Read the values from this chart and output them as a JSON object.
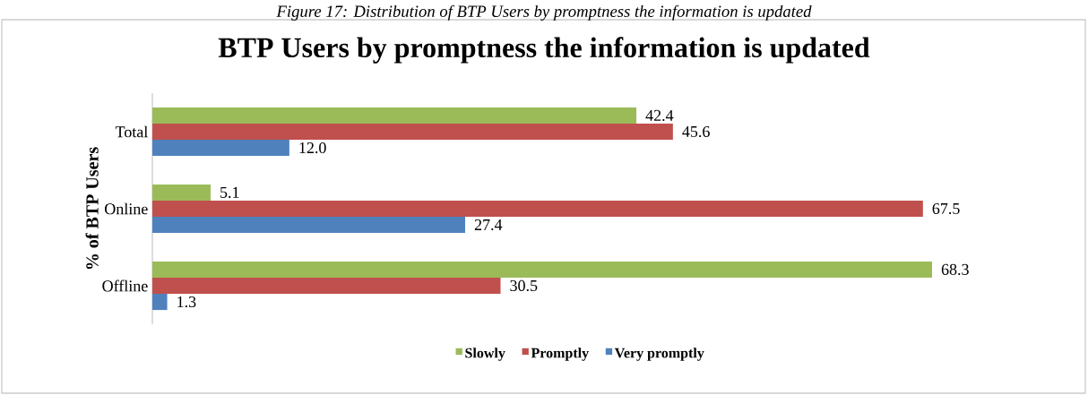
{
  "chart_data": {
    "type": "bar",
    "orientation": "horizontal",
    "title": "BTP Users by promptness the information is updated",
    "ylabel": "% of BTP Users",
    "annotations": [
      "Figure 17: Distribution of BTP Users by promptness the information is updated"
    ],
    "categories": [
      "Total",
      "Online",
      "Offline"
    ],
    "series": [
      {
        "name": "Slowly",
        "color": "#9bbb59",
        "values": [
          42.4,
          5.1,
          68.3
        ],
        "value_labels": [
          "42.4",
          "5.1",
          "68.3"
        ]
      },
      {
        "name": "Promptly",
        "color": "#c0504d",
        "values": [
          45.6,
          67.5,
          30.5
        ],
        "value_labels": [
          "45.6",
          "67.5",
          "30.5"
        ]
      },
      {
        "name": "Very promptly",
        "color": "#4f81bd",
        "values": [
          12.0,
          27.4,
          1.3
        ],
        "value_labels": [
          "12.0",
          "27.4",
          "1.3"
        ]
      }
    ],
    "legend": "bottom"
  }
}
